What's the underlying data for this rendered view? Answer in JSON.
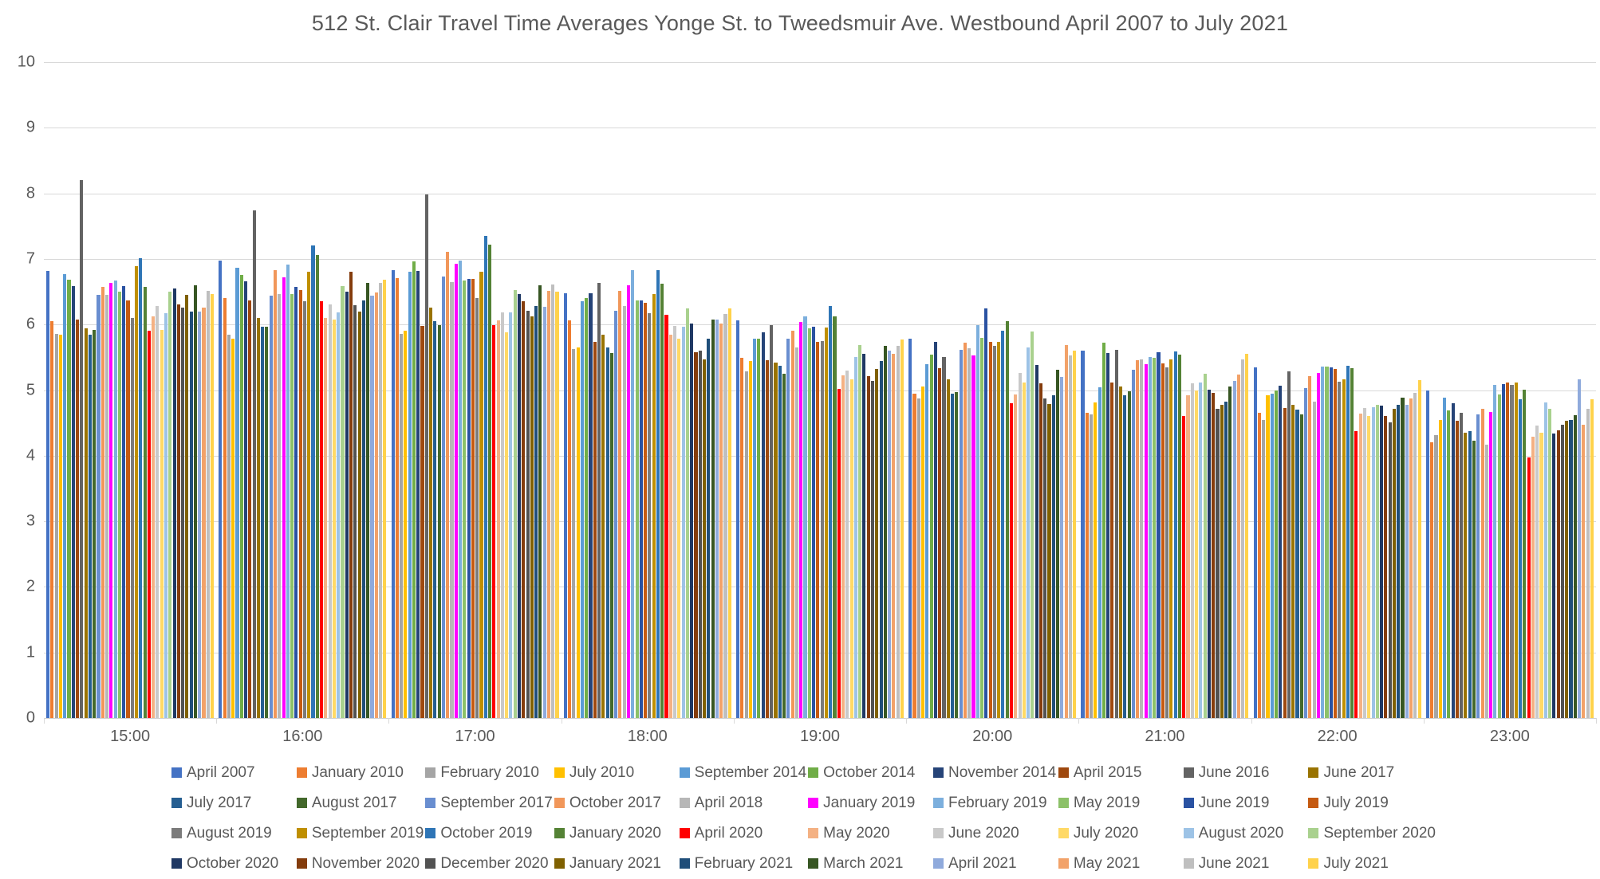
{
  "chart_data": {
    "type": "bar",
    "title": "512 St. Clair Travel Time Averages Yonge St. to Tweedsmuir Ave. Westbound April 2007 to July 2021",
    "xlabel": "",
    "ylabel": "",
    "ylim": [
      0,
      10
    ],
    "yticks": [
      0,
      1,
      2,
      3,
      4,
      5,
      6,
      7,
      8,
      9,
      10
    ],
    "grid": true,
    "legend_position": "bottom",
    "categories": [
      "15:00",
      "16:00",
      "17:00",
      "18:00",
      "19:00",
      "20:00",
      "21:00",
      "22:00",
      "23:00"
    ],
    "series": [
      {
        "name": "April 2007",
        "color": "#4472C4",
        "values": [
          6.82,
          6.97,
          6.83,
          6.48,
          6.06,
          5.78,
          5.6,
          5.35,
          4.99
        ]
      },
      {
        "name": "January 2010",
        "color": "#ED7D31",
        "values": [
          6.05,
          6.4,
          6.71,
          6.06,
          5.49,
          4.95,
          4.66,
          4.65,
          4.21
        ]
      },
      {
        "name": "February 2010",
        "color": "#A5A5A5",
        "values": [
          5.86,
          5.84,
          5.86,
          5.63,
          5.29,
          4.87,
          4.63,
          4.54,
          4.31
        ]
      },
      {
        "name": "July 2010",
        "color": "#FFC000",
        "values": [
          5.84,
          5.79,
          5.91,
          5.65,
          5.44,
          5.05,
          4.81,
          4.92,
          4.54
        ]
      },
      {
        "name": "September 2014",
        "color": "#5B9BD5",
        "values": [
          6.77,
          6.87,
          6.8,
          6.35,
          5.79,
          5.39,
          5.04,
          4.94,
          4.88
        ]
      },
      {
        "name": "October 2014",
        "color": "#70AD47",
        "values": [
          6.68,
          6.76,
          6.96,
          6.41,
          5.79,
          5.54,
          5.72,
          5.0,
          4.69
        ]
      },
      {
        "name": "November 2014",
        "color": "#264478",
        "values": [
          6.59,
          6.66,
          6.82,
          6.48,
          5.88,
          5.74,
          5.56,
          5.07,
          4.8
        ]
      },
      {
        "name": "April 2015",
        "color": "#9E480E",
        "values": [
          6.07,
          6.37,
          5.98,
          5.74,
          5.46,
          5.33,
          5.11,
          4.73,
          4.53
        ]
      },
      {
        "name": "June 2016",
        "color": "#636363",
        "values": [
          8.2,
          7.74,
          7.98,
          6.64,
          5.99,
          5.51,
          5.61,
          5.29,
          4.65
        ]
      },
      {
        "name": "June 2017",
        "color": "#997300",
        "values": [
          5.94,
          6.1,
          6.26,
          5.84,
          5.42,
          5.16,
          5.05,
          4.78,
          4.35
        ]
      },
      {
        "name": "July 2017",
        "color": "#255E91",
        "values": [
          5.85,
          5.97,
          6.05,
          5.65,
          5.37,
          4.94,
          4.92,
          4.7,
          4.38
        ]
      },
      {
        "name": "August 2017",
        "color": "#43682B",
        "values": [
          5.92,
          5.97,
          5.99,
          5.56,
          5.25,
          4.97,
          4.98,
          4.63,
          4.23
        ]
      },
      {
        "name": "September 2017",
        "color": "#698ED0",
        "values": [
          6.45,
          6.44,
          6.73,
          6.21,
          5.78,
          5.62,
          5.31,
          5.03,
          4.63
        ]
      },
      {
        "name": "October 2017",
        "color": "#F1975A",
        "values": [
          6.57,
          6.83,
          7.11,
          6.51,
          5.9,
          5.72,
          5.46,
          5.21,
          4.71
        ]
      },
      {
        "name": "April 2018",
        "color": "#B7B7B7",
        "values": [
          6.45,
          6.46,
          6.65,
          6.28,
          5.65,
          5.64,
          5.47,
          4.83,
          4.17
        ]
      },
      {
        "name": "January 2019",
        "color": "#FF00FF",
        "values": [
          6.64,
          6.72,
          6.93,
          6.6,
          6.04,
          5.53,
          5.4,
          5.26,
          4.67
        ]
      },
      {
        "name": "February 2019",
        "color": "#7CAFDD",
        "values": [
          6.67,
          6.92,
          6.98,
          6.83,
          6.12,
          5.99,
          5.5,
          5.36,
          5.08
        ]
      },
      {
        "name": "May 2019",
        "color": "#8CC168",
        "values": [
          6.5,
          6.47,
          6.67,
          6.37,
          5.94,
          5.8,
          5.49,
          5.36,
          4.93
        ]
      },
      {
        "name": "June 2019",
        "color": "#2A52A2",
        "values": [
          6.59,
          6.58,
          6.7,
          6.37,
          5.97,
          6.24,
          5.58,
          5.35,
          5.09
        ]
      },
      {
        "name": "July 2019",
        "color": "#C55A11",
        "values": [
          6.37,
          6.52,
          6.69,
          6.33,
          5.74,
          5.73,
          5.41,
          5.32,
          5.12
        ]
      },
      {
        "name": "August 2019",
        "color": "#7B7B7B",
        "values": [
          6.1,
          6.36,
          6.4,
          6.17,
          5.75,
          5.68,
          5.35,
          5.13,
          5.08
        ]
      },
      {
        "name": "September 2019",
        "color": "#BF8F00",
        "values": [
          6.89,
          6.81,
          6.81,
          6.46,
          5.96,
          5.74,
          5.47,
          5.17,
          5.11
        ]
      },
      {
        "name": "October 2019",
        "color": "#2E75B6",
        "values": [
          7.01,
          7.2,
          7.35,
          6.83,
          6.28,
          5.9,
          5.59,
          5.37,
          4.86
        ]
      },
      {
        "name": "January 2020",
        "color": "#548235",
        "values": [
          6.58,
          7.06,
          7.22,
          6.62,
          6.12,
          6.05,
          5.54,
          5.33,
          5.01
        ]
      },
      {
        "name": "April 2020",
        "color": "#FF0000",
        "values": [
          5.91,
          6.35,
          5.99,
          6.15,
          5.02,
          4.8,
          4.6,
          4.38,
          3.97
        ]
      },
      {
        "name": "May 2020",
        "color": "#F4B183",
        "values": [
          6.13,
          6.1,
          6.06,
          5.84,
          5.23,
          4.93,
          4.92,
          4.64,
          4.29
        ]
      },
      {
        "name": "June 2020",
        "color": "#C9C9C9",
        "values": [
          6.28,
          6.31,
          6.18,
          5.98,
          5.3,
          5.26,
          5.1,
          4.73,
          4.46
        ]
      },
      {
        "name": "July 2020",
        "color": "#FFD966",
        "values": [
          5.92,
          6.07,
          5.88,
          5.79,
          5.16,
          5.12,
          4.99,
          4.61,
          4.35
        ]
      },
      {
        "name": "August 2020",
        "color": "#9DC3E6",
        "values": [
          6.17,
          6.18,
          6.18,
          5.97,
          5.5,
          5.65,
          5.12,
          4.74,
          4.81
        ]
      },
      {
        "name": "September 2020",
        "color": "#A9D18E",
        "values": [
          6.5,
          6.59,
          6.52,
          6.25,
          5.69,
          5.89,
          5.25,
          4.77,
          4.72
        ]
      },
      {
        "name": "October 2020",
        "color": "#1F3864",
        "values": [
          6.55,
          6.5,
          6.46,
          6.02,
          5.55,
          5.38,
          5.01,
          4.76,
          4.34
        ]
      },
      {
        "name": "November 2020",
        "color": "#843C0C",
        "values": [
          6.31,
          6.81,
          6.35,
          5.58,
          5.21,
          5.1,
          4.96,
          4.61,
          4.39
        ]
      },
      {
        "name": "December 2020",
        "color": "#525252",
        "values": [
          6.26,
          6.29,
          6.21,
          5.6,
          5.14,
          4.87,
          4.71,
          4.51,
          4.47
        ]
      },
      {
        "name": "January 2021",
        "color": "#7F6000",
        "values": [
          6.45,
          6.2,
          6.13,
          5.47,
          5.32,
          4.79,
          4.77,
          4.72,
          4.53
        ]
      },
      {
        "name": "February 2021",
        "color": "#1F4E79",
        "values": [
          6.2,
          6.37,
          6.28,
          5.78,
          5.45,
          4.92,
          4.82,
          4.77,
          4.54
        ]
      },
      {
        "name": "March 2021",
        "color": "#375623",
        "values": [
          6.6,
          6.63,
          6.6,
          6.07,
          5.67,
          5.31,
          5.06,
          4.89,
          4.62
        ]
      },
      {
        "name": "April 2021",
        "color": "#8FAADC",
        "values": [
          6.2,
          6.44,
          6.27,
          6.07,
          5.6,
          5.2,
          5.14,
          4.78,
          5.16
        ]
      },
      {
        "name": "May 2021",
        "color": "#F2A269",
        "values": [
          6.26,
          6.49,
          6.51,
          6.02,
          5.55,
          5.69,
          5.24,
          4.87,
          4.47
        ]
      },
      {
        "name": "June 2021",
        "color": "#BFBFBF",
        "values": [
          6.51,
          6.63,
          6.61,
          6.16,
          5.68,
          5.53,
          5.47,
          4.96,
          4.71
        ]
      },
      {
        "name": "July 2021",
        "color": "#FFD24B",
        "values": [
          6.46,
          6.68,
          6.5,
          6.24,
          5.77,
          5.6,
          5.55,
          5.15,
          4.86
        ]
      }
    ]
  }
}
